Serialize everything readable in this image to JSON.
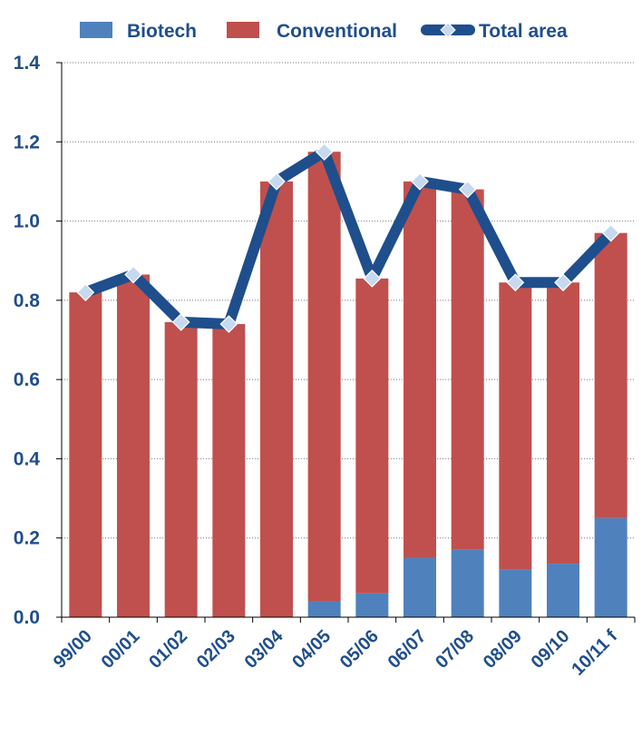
{
  "chart_data": {
    "type": "bar",
    "stacked": true,
    "categories": [
      "99/00",
      "00/01",
      "01/02",
      "02/03",
      "03/04",
      "04/05",
      "05/06",
      "06/07",
      "07/08",
      "08/09",
      "09/10",
      "10/11 f"
    ],
    "series": [
      {
        "name": "Biotech",
        "type": "bar",
        "color": "#4f81bd",
        "values": [
          0,
          0,
          0,
          0,
          0,
          0.04,
          0.06,
          0.15,
          0.17,
          0.12,
          0.135,
          0.25
        ]
      },
      {
        "name": "Conventional",
        "type": "bar",
        "color": "#c0504d",
        "values": [
          0.82,
          0.865,
          0.745,
          0.74,
          1.1,
          1.135,
          0.795,
          0.95,
          0.91,
          0.725,
          0.71,
          0.72
        ]
      },
      {
        "name": "Total area",
        "type": "line",
        "color": "#1f4e8c",
        "marker_color": "#c6d9f1",
        "values": [
          0.82,
          0.865,
          0.745,
          0.74,
          1.1,
          1.175,
          0.855,
          1.1,
          1.08,
          0.845,
          0.845,
          0.97
        ]
      }
    ],
    "yticks": [
      "0.0",
      "0.2",
      "0.4",
      "0.6",
      "0.8",
      "1.0",
      "1.2",
      "1.4"
    ],
    "ylim": [
      0,
      1.4
    ],
    "grid": true,
    "legend_position": "top",
    "text_color": "#1f4e8c"
  }
}
